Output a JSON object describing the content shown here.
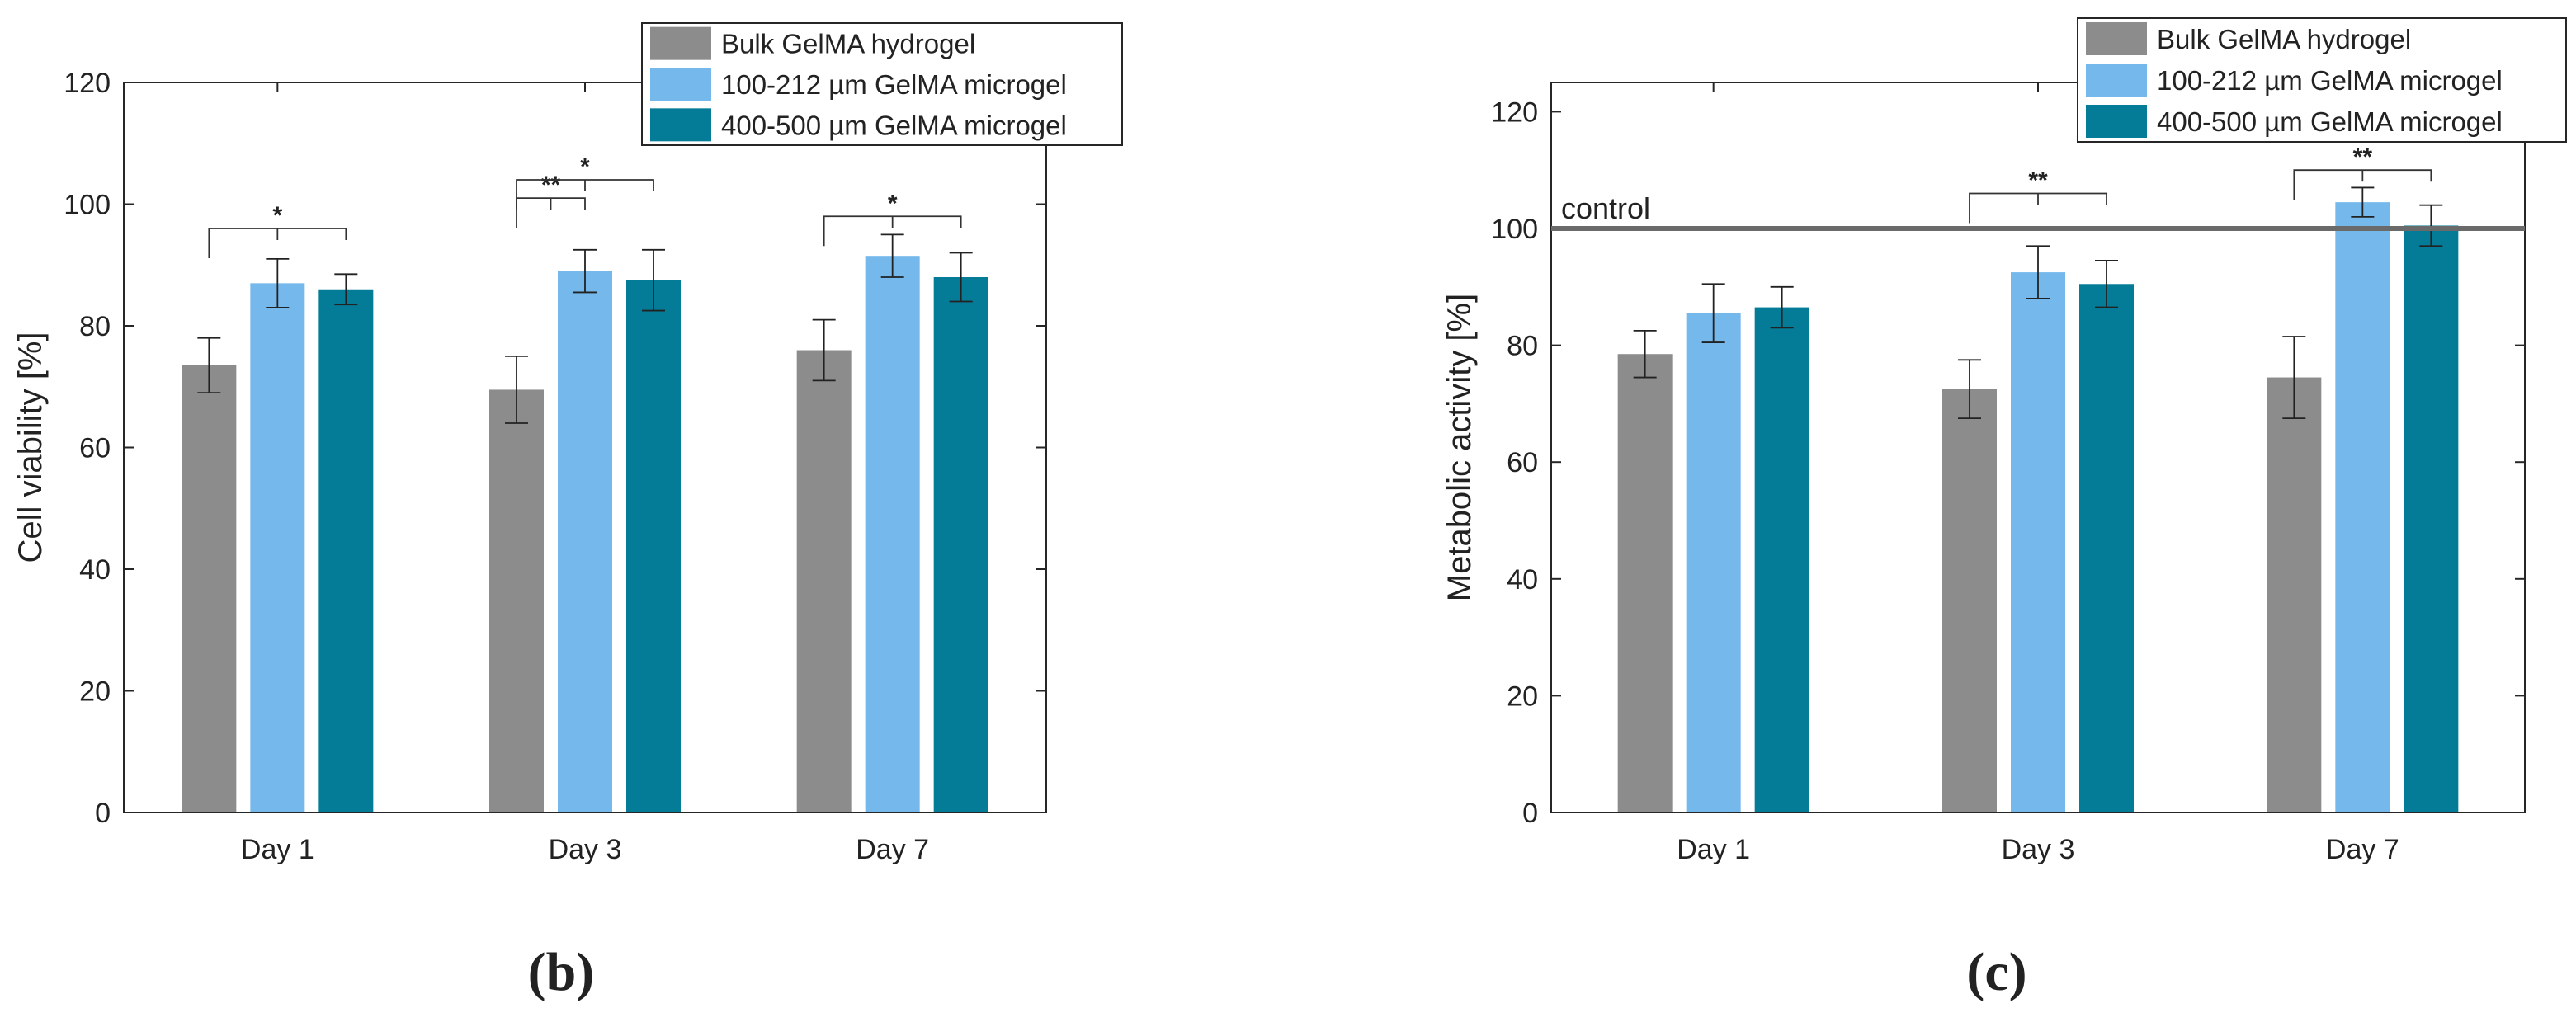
{
  "chart_data": [
    {
      "type": "bar",
      "panel_label": "(b)",
      "categories": [
        "Day 1",
        "Day 3",
        "Day 7"
      ],
      "ylabel": "Cell viability [%]",
      "xlabel": "",
      "ylim": [
        0,
        120
      ],
      "yticks": [
        0,
        20,
        40,
        60,
        80,
        100,
        120
      ],
      "legend_position": "top-right",
      "series": [
        {
          "name": "Bulk GelMA hydrogel",
          "color": "#8c8c8c",
          "values": [
            73.5,
            69.5,
            76
          ],
          "errors": [
            4.5,
            5.5,
            5
          ]
        },
        {
          "name": "100-212 µm GelMA microgel",
          "color": "#75b8eb",
          "values": [
            87,
            89,
            91.5
          ],
          "errors": [
            4,
            3.5,
            3.5
          ]
        },
        {
          "name": "400-500 µm GelMA microgel",
          "color": "#057c97",
          "values": [
            86,
            87.5,
            88
          ],
          "errors": [
            2.5,
            5,
            4
          ]
        }
      ],
      "significance": [
        {
          "category": 0,
          "from": 0,
          "to": 2,
          "label": "*",
          "y": 96
        },
        {
          "category": 1,
          "from": 0,
          "to": 1,
          "label": "**",
          "y": 101
        },
        {
          "category": 1,
          "from": 0,
          "to": 2,
          "label": "*",
          "y": 104
        },
        {
          "category": 2,
          "from": 0,
          "to": 2,
          "label": "*",
          "y": 98
        }
      ]
    },
    {
      "type": "bar",
      "panel_label": "(c)",
      "categories": [
        "Day 1",
        "Day 3",
        "Day 7"
      ],
      "ylabel": "Metabolic activity [%]",
      "xlabel": "",
      "ylim": [
        0,
        125
      ],
      "yticks": [
        0,
        20,
        40,
        60,
        80,
        100,
        120
      ],
      "legend_position": "top-right",
      "reference_line": {
        "value": 100,
        "label": "control"
      },
      "series": [
        {
          "name": "Bulk GelMA hydrogel",
          "color": "#8c8c8c",
          "values": [
            78.5,
            72.5,
            74.5
          ],
          "errors": [
            4,
            5,
            7
          ]
        },
        {
          "name": "100-212 µm GelMA microgel",
          "color": "#75b8eb",
          "values": [
            85.5,
            92.5,
            104.5
          ],
          "errors": [
            5,
            4.5,
            2.5
          ]
        },
        {
          "name": "400-500 µm GelMA microgel",
          "color": "#057c97",
          "values": [
            86.5,
            90.5,
            100.5
          ],
          "errors": [
            3.5,
            4,
            3.5
          ]
        }
      ],
      "significance": [
        {
          "category": 1,
          "from": 0,
          "to": 2,
          "label": "**",
          "y": 106
        },
        {
          "category": 2,
          "from": 0,
          "to": 2,
          "label": "**",
          "y": 110
        }
      ]
    }
  ]
}
